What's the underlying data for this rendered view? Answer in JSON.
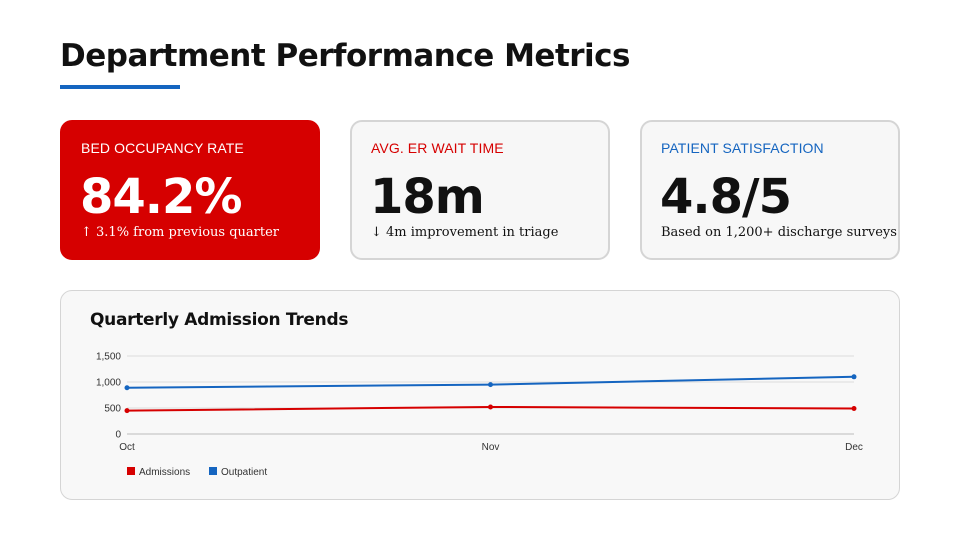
{
  "page": {
    "title": "Department Performance Metrics",
    "accent_color": "#1565c0"
  },
  "kpis": [
    {
      "label": "BED OCCUPANCY RATE",
      "value": "84.2%",
      "sub": "↑ 3.1% from previous quarter",
      "style": "accent",
      "bg_color": "#d60000"
    },
    {
      "label": "AVG. ER WAIT TIME",
      "value": "18m",
      "sub": "↓ 4m improvement in triage",
      "style": "plain",
      "label_color": "#d60000"
    },
    {
      "label": "PATIENT SATISFACTION",
      "value": "4.8/5",
      "sub": "Based on 1,200+ discharge surveys",
      "style": "plain",
      "label_color": "#1565c0"
    }
  ],
  "chart_data": {
    "type": "line",
    "title": "Quarterly Admission Trends",
    "categories": [
      "Oct",
      "Nov",
      "Dec"
    ],
    "series": [
      {
        "name": "Admissions",
        "values": [
          450,
          520,
          490
        ],
        "color": "#d60000"
      },
      {
        "name": "Outpatient",
        "values": [
          890,
          950,
          1100
        ],
        "color": "#1565c0"
      }
    ],
    "ylim": [
      0,
      1500
    ],
    "yticks": [
      0,
      500,
      1000,
      1500
    ],
    "ytick_labels": [
      "0",
      "500",
      "1,000",
      "1,500"
    ],
    "grid": true,
    "legend": "bottom-left",
    "xlabel": "",
    "ylabel": ""
  }
}
